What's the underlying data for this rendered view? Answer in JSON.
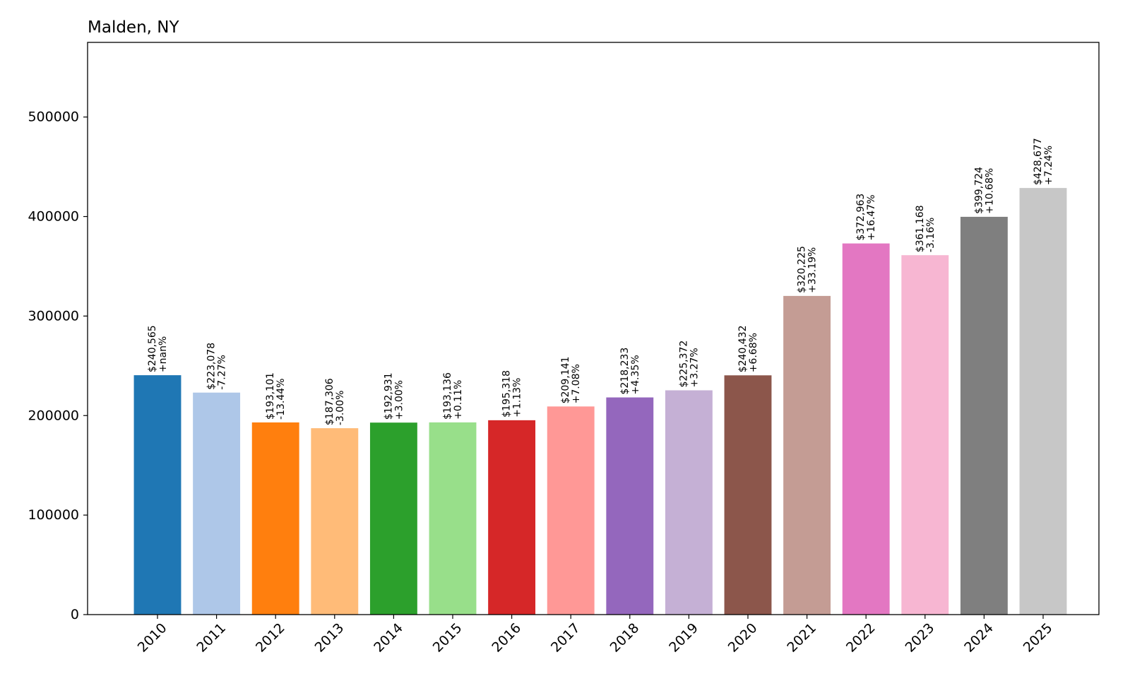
{
  "chart_data": {
    "type": "bar",
    "title": "Malden, NY",
    "xlabel": "",
    "ylabel": "",
    "ylim": [
      0,
      575000
    ],
    "yticks": [
      0,
      100000,
      200000,
      300000,
      400000,
      500000
    ],
    "ytick_labels": [
      "0",
      "100000",
      "200000",
      "300000",
      "400000",
      "500000"
    ],
    "grid": false,
    "categories": [
      "2010",
      "2011",
      "2012",
      "2013",
      "2014",
      "2015",
      "2016",
      "2017",
      "2018",
      "2019",
      "2020",
      "2021",
      "2022",
      "2023",
      "2024",
      "2025"
    ],
    "values": [
      240565,
      223078,
      193101,
      187306,
      192931,
      193136,
      195318,
      209141,
      218233,
      225372,
      240432,
      320225,
      372963,
      361168,
      399724,
      428677
    ],
    "value_labels": [
      "$240,565",
      "$223,078",
      "$193,101",
      "$187,306",
      "$192,931",
      "$193,136",
      "$195,318",
      "$209,141",
      "$218,233",
      "$225,372",
      "$240,432",
      "$320,225",
      "$372,963",
      "$361,168",
      "$399,724",
      "$428,677"
    ],
    "change_labels": [
      "+nan%",
      "-7.27%",
      "-13.44%",
      "-3.00%",
      "+3.00%",
      "+0.11%",
      "+1.13%",
      "+7.08%",
      "+4.35%",
      "+3.27%",
      "+6.68%",
      "+33.19%",
      "+16.47%",
      "-3.16%",
      "+10.68%",
      "+7.24%"
    ],
    "colors": [
      "#1f77b4",
      "#aec7e8",
      "#ff7f0e",
      "#ffbb78",
      "#2ca02c",
      "#98df8a",
      "#d62728",
      "#ff9896",
      "#9467bd",
      "#c5b0d5",
      "#8c564b",
      "#c49c94",
      "#e377c2",
      "#f7b6d2",
      "#7f7f7f",
      "#c7c7c7"
    ]
  }
}
